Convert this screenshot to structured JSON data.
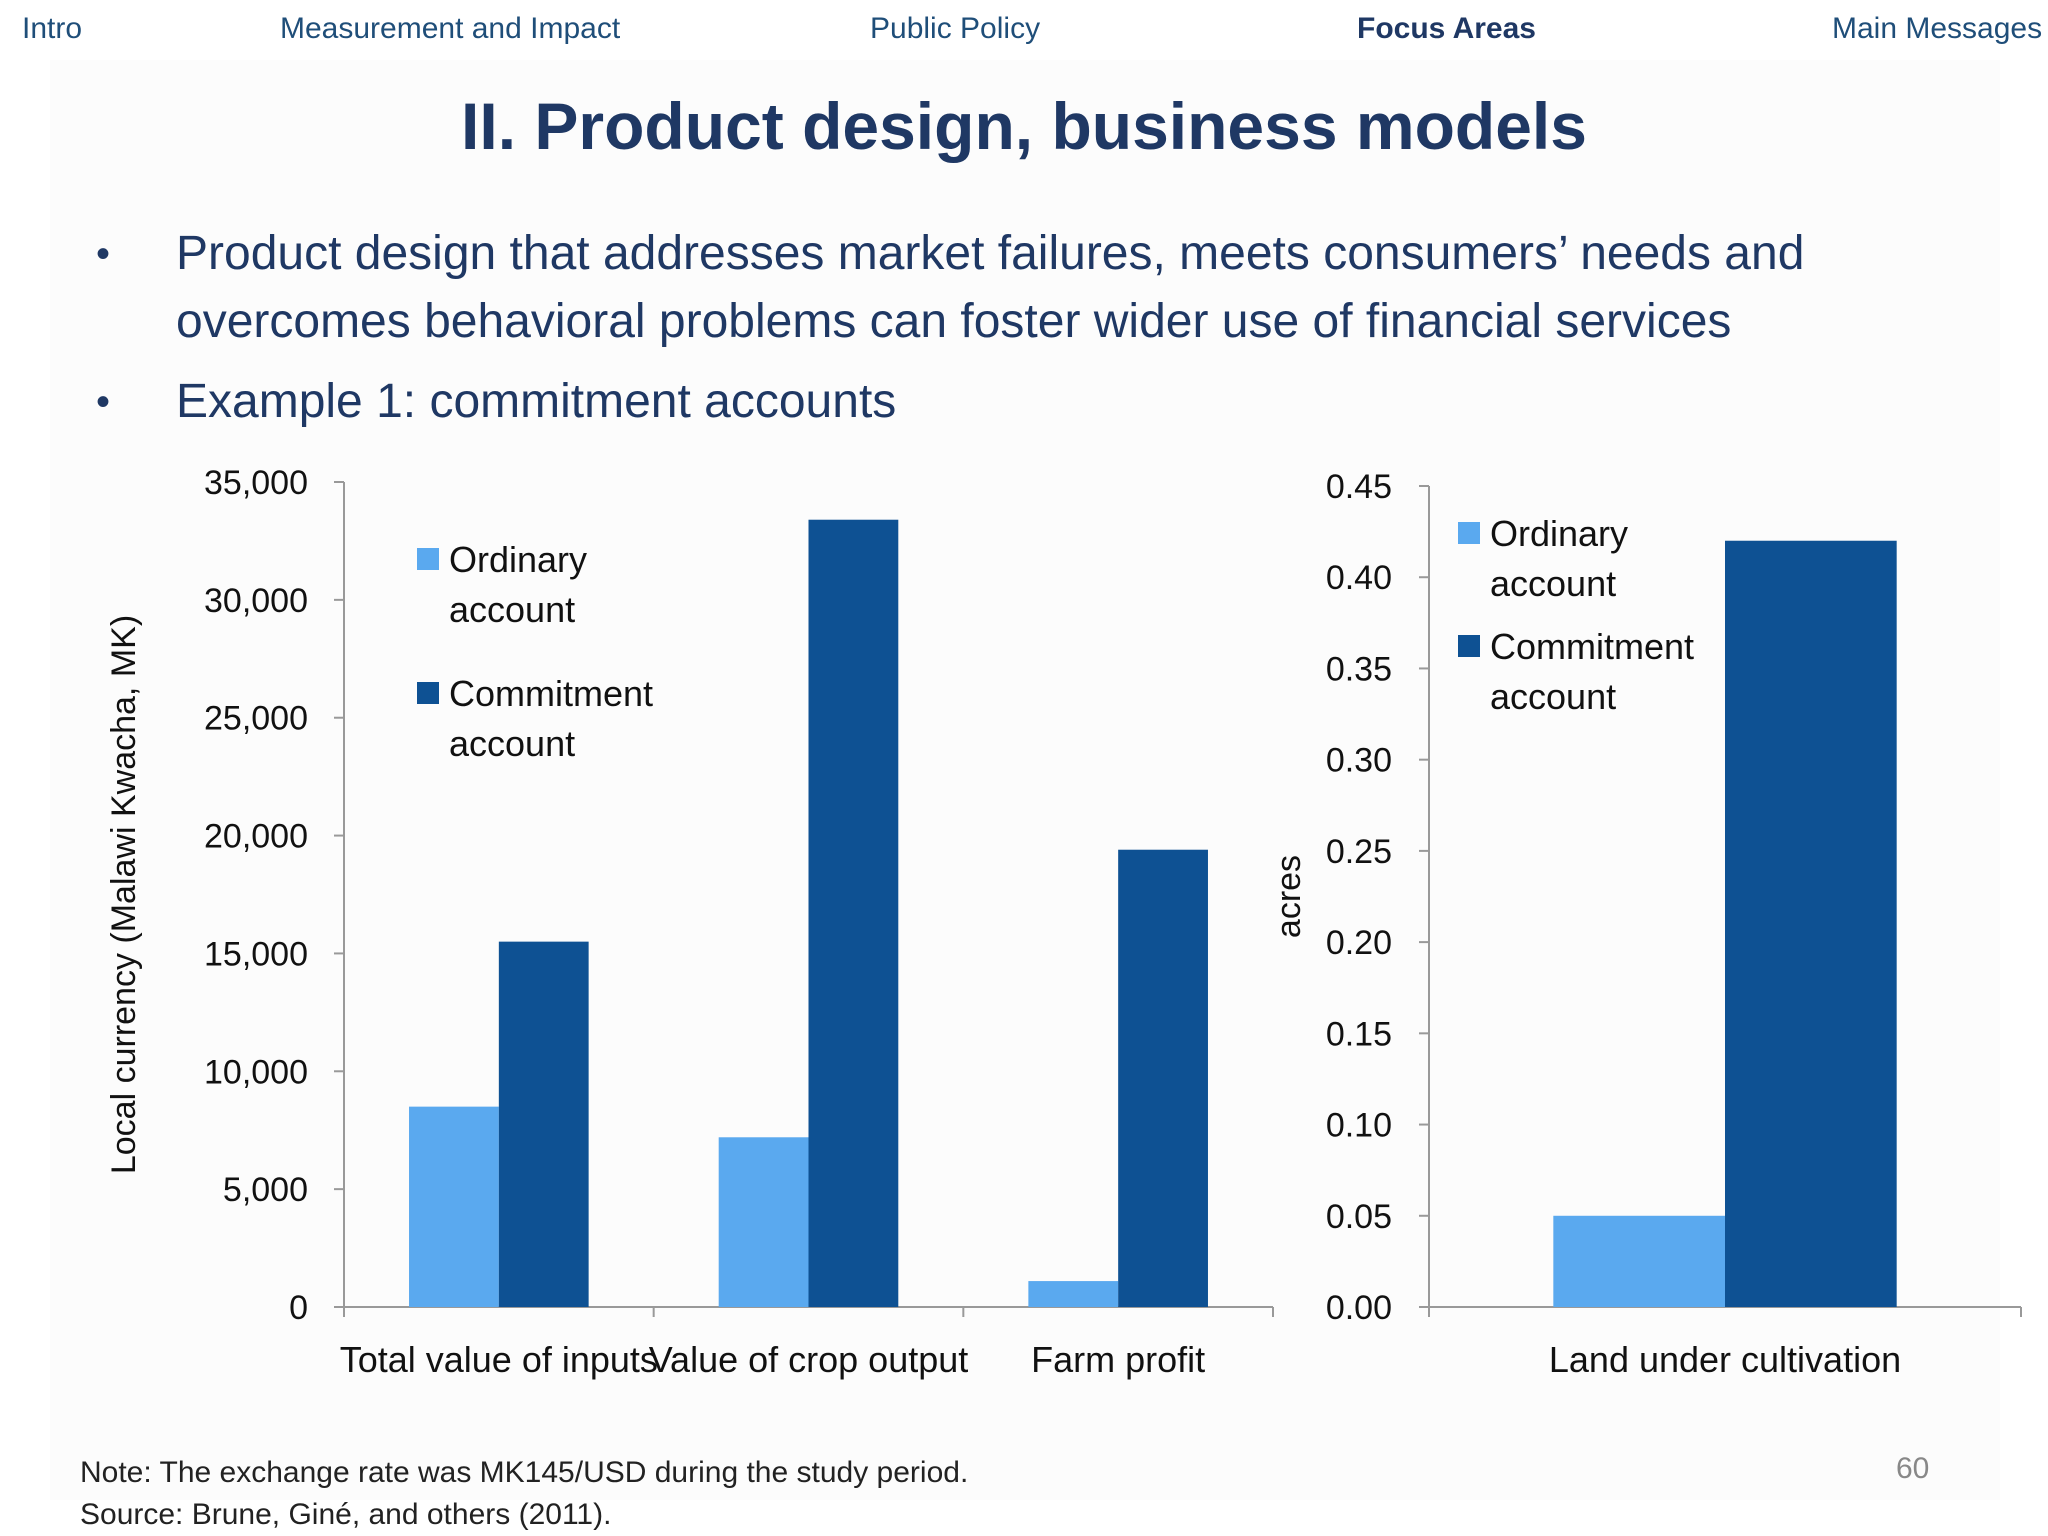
{
  "nav": {
    "items": [
      "Intro",
      "Measurement and Impact",
      "Public Policy",
      "Focus Areas",
      "Main Messages"
    ],
    "active": "Focus Areas"
  },
  "slide": {
    "title": "II. Product design, business models",
    "bullets": [
      "Product design that addresses market failures, meets consumers’ needs and overcomes behavioral problems can foster wider use of financial services",
      "Example 1: commitment accounts"
    ],
    "note": "Note: The exchange rate was MK145/USD during the study period.",
    "source": "Source: Brune, Giné, and others (2011).",
    "page_number": "60"
  },
  "colors": {
    "ordinary": "#5aa9ef",
    "commitment": "#0e5193",
    "axis": "#999999",
    "text": "#111111"
  },
  "chart_data": [
    {
      "type": "bar",
      "categories": [
        "Total value of inputs",
        "Value of crop output",
        "Farm profit"
      ],
      "series": [
        {
          "name": "Ordinary account",
          "legend_lines": [
            "Ordinary",
            "account"
          ],
          "values": [
            8500,
            7200,
            1100
          ]
        },
        {
          "name": "Commitment account",
          "legend_lines": [
            "Commitment",
            "account"
          ],
          "values": [
            15500,
            33400,
            19400
          ]
        }
      ],
      "ylabel": "Local currency (Malawi Kwacha, MK)",
      "ylim": [
        0,
        35000
      ],
      "yticks": [
        0,
        5000,
        10000,
        15000,
        20000,
        25000,
        30000,
        35000
      ],
      "ytick_labels": [
        "0",
        "5,000",
        "10,000",
        "15,000",
        "20,000",
        "25,000",
        "30,000",
        "35,000"
      ],
      "legend_position": "top-left"
    },
    {
      "type": "bar",
      "categories": [
        "Land under cultivation"
      ],
      "series": [
        {
          "name": "Ordinary account",
          "legend_lines": [
            "Ordinary",
            "account"
          ],
          "values": [
            0.05
          ]
        },
        {
          "name": "Commitment account",
          "legend_lines": [
            "Commitment",
            "account"
          ],
          "values": [
            0.42
          ]
        }
      ],
      "ylabel": "acres",
      "ylim": [
        0,
        0.45
      ],
      "yticks": [
        0,
        0.05,
        0.1,
        0.15,
        0.2,
        0.25,
        0.3,
        0.35,
        0.4,
        0.45
      ],
      "ytick_labels": [
        "0.00",
        "0.05",
        "0.10",
        "0.15",
        "0.20",
        "0.25",
        "0.30",
        "0.35",
        "0.40",
        "0.45"
      ],
      "legend_position": "top-left"
    }
  ]
}
